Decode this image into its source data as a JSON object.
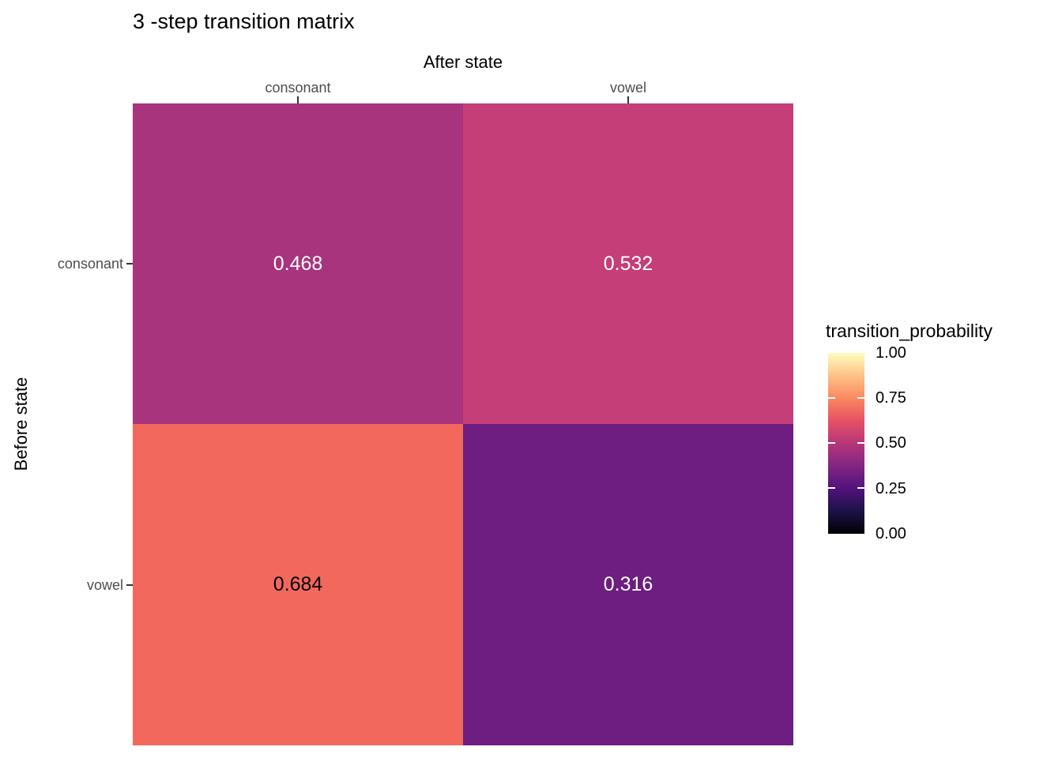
{
  "chart_data": {
    "type": "heatmap",
    "title": "3 -step transition matrix",
    "xlabel": "After state",
    "ylabel": "Before state",
    "x_categories": [
      "consonant",
      "vowel"
    ],
    "y_categories": [
      "consonant",
      "vowel"
    ],
    "values": [
      [
        0.468,
        0.532
      ],
      [
        0.684,
        0.316
      ]
    ],
    "cells": [
      {
        "row": "consonant",
        "col": "consonant",
        "value": 0.468,
        "label": "0.468",
        "color": "#A8347E",
        "text_color": "#FFFFFF"
      },
      {
        "row": "consonant",
        "col": "vowel",
        "value": 0.532,
        "label": "0.532",
        "color": "#C53E77",
        "text_color": "#FFFFFF"
      },
      {
        "row": "vowel",
        "col": "consonant",
        "value": 0.684,
        "label": "0.684",
        "color": "#F3685C",
        "text_color": "#000000"
      },
      {
        "row": "vowel",
        "col": "vowel",
        "value": 0.316,
        "label": "0.316",
        "color": "#6E1D81",
        "text_color": "#FFFFFF"
      }
    ],
    "legend": {
      "title": "transition_probability",
      "position": "right",
      "range": [
        0,
        1
      ],
      "tick_labels": [
        "1.00",
        "0.75",
        "0.50",
        "0.25",
        "0.00"
      ],
      "colormap": "magma",
      "gradient_stops": [
        {
          "pos": 0,
          "color": "#000004"
        },
        {
          "pos": 12.5,
          "color": "#1D1147"
        },
        {
          "pos": 25,
          "color": "#51127C"
        },
        {
          "pos": 37.5,
          "color": "#822681"
        },
        {
          "pos": 50,
          "color": "#B63679"
        },
        {
          "pos": 62.5,
          "color": "#E65164"
        },
        {
          "pos": 75,
          "color": "#FB8861"
        },
        {
          "pos": 87.5,
          "color": "#FEC287"
        },
        {
          "pos": 100,
          "color": "#FCFDBF"
        }
      ]
    },
    "layout": {
      "grid": "off",
      "axis_tick_label_color": "#4D4D4D",
      "axis_tick_mark_color": "#333333",
      "background_color": "#FFFFFF"
    }
  }
}
